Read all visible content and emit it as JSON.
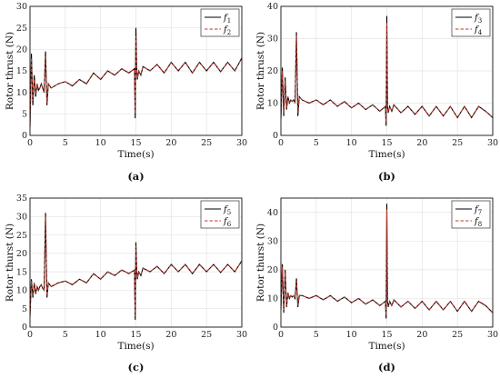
{
  "chart_data": [
    {
      "type": "line",
      "panel_label": "(a)",
      "xlabel": "Time(s)",
      "ylabel": "Rotor thrust  (N)",
      "xlim": [
        0,
        30
      ],
      "ylim": [
        0,
        30
      ],
      "xticks": [
        "0",
        "5",
        "10",
        "15",
        "20",
        "25",
        "30"
      ],
      "yticks": [
        "0",
        "5",
        "10",
        "15",
        "20",
        "25",
        "30"
      ],
      "grid": true,
      "legend_position": "top-right",
      "series": [
        {
          "name": "f1",
          "legend_base": "f",
          "legend_sub": "1",
          "color": "#000000",
          "style": "solid",
          "x": [
            0,
            0.2,
            0.4,
            0.6,
            0.8,
            1.0,
            1.2,
            1.4,
            1.6,
            1.8,
            2.0,
            2.2,
            2.4,
            2.6,
            3,
            3.5,
            4,
            5,
            6,
            7,
            8,
            9,
            10,
            11,
            12,
            13,
            14,
            14.8,
            14.9,
            15.0,
            15.1,
            15.2,
            15.4,
            15.7,
            16,
            17,
            18,
            19,
            20,
            21,
            22,
            23,
            24,
            25,
            26,
            27,
            28,
            29,
            30
          ],
          "y": [
            2,
            19,
            7,
            14,
            9,
            12,
            10.5,
            11,
            12,
            11,
            10,
            19.5,
            7,
            12,
            11,
            11.5,
            12,
            12.5,
            11.5,
            13,
            12,
            14.5,
            13,
            15,
            14,
            15.5,
            14.5,
            15.5,
            4,
            25,
            16,
            13,
            15,
            14,
            16,
            15,
            16.5,
            14.5,
            17,
            15,
            17,
            14.5,
            17,
            15,
            17,
            14.8,
            17,
            15,
            18
          ]
        },
        {
          "name": "f2",
          "legend_base": "f",
          "legend_sub": "2",
          "color": "#c0392b",
          "style": "dashed",
          "x": [
            0,
            0.2,
            0.4,
            0.6,
            0.8,
            1.0,
            1.2,
            1.4,
            1.6,
            1.8,
            2.0,
            2.2,
            2.4,
            2.6,
            3,
            3.5,
            4,
            5,
            6,
            7,
            8,
            9,
            10,
            11,
            12,
            13,
            14,
            14.8,
            14.9,
            15.0,
            15.1,
            15.2,
            15.4,
            15.7,
            16,
            17,
            18,
            19,
            20,
            21,
            22,
            23,
            24,
            25,
            26,
            27,
            28,
            29,
            30
          ],
          "y": [
            2,
            18,
            8,
            13,
            9.5,
            12,
            10.8,
            11,
            11.8,
            11.2,
            10.2,
            18.5,
            7.5,
            12,
            11,
            11.5,
            12,
            12.5,
            11.6,
            13,
            12.1,
            14.4,
            13.1,
            14.9,
            14.1,
            15.4,
            14.6,
            15.4,
            5,
            23,
            15.8,
            13.2,
            14.9,
            14.1,
            15.9,
            15.1,
            16.4,
            14.6,
            16.9,
            15.1,
            16.9,
            14.6,
            16.9,
            15.1,
            16.9,
            14.9,
            16.9,
            15.1,
            17.9
          ]
        }
      ]
    },
    {
      "type": "line",
      "panel_label": "(b)",
      "xlabel": "Time(s)",
      "ylabel": "Rotor thrust  (N)",
      "xlim": [
        0,
        30
      ],
      "ylim": [
        0,
        40
      ],
      "xticks": [
        "0",
        "5",
        "10",
        "15",
        "20",
        "25",
        "30"
      ],
      "yticks": [
        "0",
        "10",
        "20",
        "30",
        "40"
      ],
      "grid": true,
      "legend_position": "top-right",
      "series": [
        {
          "name": "f3",
          "legend_base": "f",
          "legend_sub": "3",
          "color": "#000000",
          "style": "solid",
          "x": [
            0,
            0.2,
            0.4,
            0.6,
            0.8,
            1.0,
            1.2,
            1.4,
            1.6,
            1.8,
            2.0,
            2.2,
            2.4,
            2.6,
            3,
            4,
            5,
            6,
            7,
            8,
            9,
            10,
            11,
            12,
            13,
            14,
            14.8,
            14.9,
            15.0,
            15.1,
            15.2,
            15.4,
            15.7,
            16,
            17,
            18,
            19,
            20,
            21,
            22,
            23,
            24,
            25,
            26,
            27,
            28,
            29,
            30
          ],
          "y": [
            5,
            21,
            6,
            18,
            8,
            12,
            10,
            11,
            10.5,
            11,
            10,
            32,
            6,
            12,
            11,
            10,
            11,
            9.5,
            11,
            9,
            10.5,
            8.5,
            10,
            8,
            9.5,
            7.5,
            9,
            3,
            37,
            9,
            7,
            9,
            7.5,
            9.5,
            7,
            9,
            6.5,
            9,
            6,
            9,
            6,
            9,
            5.5,
            9,
            5.5,
            9,
            7.5,
            5.5
          ]
        },
        {
          "name": "f4",
          "legend_base": "f",
          "legend_sub": "4",
          "color": "#c0392b",
          "style": "dashed",
          "x": [
            0,
            0.2,
            0.4,
            0.6,
            0.8,
            1.0,
            1.2,
            1.4,
            1.6,
            1.8,
            2.0,
            2.2,
            2.4,
            2.6,
            3,
            4,
            5,
            6,
            7,
            8,
            9,
            10,
            11,
            12,
            13,
            14,
            14.8,
            14.9,
            15.0,
            15.1,
            15.2,
            15.4,
            15.7,
            16,
            17,
            18,
            19,
            20,
            21,
            22,
            23,
            24,
            25,
            26,
            27,
            28,
            29,
            30
          ],
          "y": [
            5,
            20,
            7,
            17,
            8.5,
            12,
            10.2,
            11,
            10.6,
            11,
            10.1,
            31,
            7,
            12,
            11,
            10.1,
            10.9,
            9.6,
            10.9,
            9.1,
            10.4,
            8.6,
            9.9,
            8.1,
            9.4,
            7.6,
            8.9,
            4,
            35,
            9.1,
            7.2,
            8.9,
            7.6,
            9.4,
            7.1,
            8.9,
            6.6,
            8.9,
            6.1,
            8.9,
            6.1,
            8.9,
            5.6,
            8.9,
            5.6,
            8.9,
            7.4,
            5.6
          ]
        }
      ]
    },
    {
      "type": "line",
      "panel_label": "(c)",
      "xlabel": "Time(s)",
      "ylabel": "Rotor thurst  (N)",
      "xlim": [
        0,
        30
      ],
      "ylim": [
        0,
        35
      ],
      "xticks": [
        "0",
        "5",
        "10",
        "15",
        "20",
        "25",
        "30"
      ],
      "yticks": [
        "0",
        "5",
        "10",
        "15",
        "20",
        "25",
        "30",
        "35"
      ],
      "grid": true,
      "legend_position": "top-right",
      "series": [
        {
          "name": "f5",
          "legend_base": "f",
          "legend_sub": "5",
          "color": "#000000",
          "style": "solid",
          "x": [
            0,
            0.2,
            0.4,
            0.6,
            0.8,
            1.0,
            1.2,
            1.4,
            1.6,
            1.8,
            2.0,
            2.2,
            2.4,
            2.6,
            3,
            3.5,
            4,
            5,
            6,
            7,
            8,
            9,
            10,
            11,
            12,
            13,
            14,
            14.8,
            14.9,
            15.0,
            15.1,
            15.2,
            15.4,
            15.7,
            16,
            17,
            18,
            19,
            20,
            21,
            22,
            23,
            24,
            25,
            26,
            27,
            28,
            29,
            30
          ],
          "y": [
            3,
            13,
            8,
            12,
            9,
            11,
            10,
            11,
            11.5,
            10.5,
            10,
            31,
            8,
            12,
            11,
            11.5,
            12,
            12.5,
            11.5,
            13,
            12,
            14.5,
            13,
            15,
            14,
            15.5,
            14.5,
            15.5,
            2,
            23,
            16,
            13,
            15,
            14,
            16,
            15,
            16.5,
            14.5,
            17,
            15,
            17,
            14.5,
            17,
            15,
            17,
            14.8,
            17,
            15,
            18
          ]
        },
        {
          "name": "f6",
          "legend_base": "f",
          "legend_sub": "6",
          "color": "#c0392b",
          "style": "dashed",
          "x": [
            0,
            0.2,
            0.4,
            0.6,
            0.8,
            1.0,
            1.2,
            1.4,
            1.6,
            1.8,
            2.0,
            2.2,
            2.4,
            2.6,
            3,
            3.5,
            4,
            5,
            6,
            7,
            8,
            9,
            10,
            11,
            12,
            13,
            14,
            14.8,
            14.9,
            15.0,
            15.1,
            15.2,
            15.4,
            15.7,
            16,
            17,
            18,
            19,
            20,
            21,
            22,
            23,
            24,
            25,
            26,
            27,
            28,
            29,
            30
          ],
          "y": [
            3,
            12.5,
            8.5,
            11.8,
            9.3,
            11,
            10.2,
            11,
            11.3,
            10.6,
            10.1,
            30,
            8.5,
            12,
            11,
            11.5,
            12,
            12.5,
            11.6,
            13,
            12.1,
            14.4,
            13.1,
            14.9,
            14.1,
            15.4,
            14.6,
            15.4,
            3,
            22,
            15.8,
            13.2,
            14.9,
            14.1,
            15.9,
            15.1,
            16.4,
            14.6,
            16.9,
            15.1,
            16.9,
            14.6,
            16.9,
            15.1,
            16.9,
            14.9,
            16.9,
            15.1,
            17.9
          ]
        }
      ]
    },
    {
      "type": "line",
      "panel_label": "(d)",
      "xlabel": "Time(s)",
      "ylabel": "Rotor thurst  (N)",
      "xlim": [
        0,
        30
      ],
      "ylim": [
        0,
        45
      ],
      "xticks": [
        "0",
        "5",
        "10",
        "15",
        "20",
        "25",
        "30"
      ],
      "yticks": [
        "0",
        "10",
        "20",
        "30",
        "40"
      ],
      "grid": true,
      "legend_position": "top-right",
      "series": [
        {
          "name": "f7",
          "legend_base": "f",
          "legend_sub": "7",
          "color": "#000000",
          "style": "solid",
          "x": [
            0,
            0.2,
            0.4,
            0.6,
            0.8,
            1.0,
            1.2,
            1.4,
            1.6,
            1.8,
            2.0,
            2.2,
            2.4,
            2.6,
            3,
            4,
            5,
            6,
            7,
            8,
            9,
            10,
            11,
            12,
            13,
            14,
            14.8,
            14.9,
            15.0,
            15.1,
            15.2,
            15.4,
            15.7,
            16,
            17,
            18,
            19,
            20,
            21,
            22,
            23,
            24,
            25,
            26,
            27,
            28,
            29,
            30
          ],
          "y": [
            6,
            22,
            5,
            20,
            7,
            12,
            10,
            11,
            10.5,
            11,
            10,
            17,
            7,
            11,
            11,
            10,
            11,
            9.5,
            11,
            9,
            10.5,
            8.5,
            10,
            8,
            9.5,
            7.5,
            9,
            3,
            43,
            9,
            7,
            9,
            7.5,
            9.5,
            7,
            9,
            6.5,
            9,
            6,
            9,
            6,
            9,
            5.5,
            9,
            5.5,
            9,
            7.5,
            5
          ]
        },
        {
          "name": "f8",
          "legend_base": "f",
          "legend_sub": "8",
          "color": "#c0392b",
          "style": "dashed",
          "x": [
            0,
            0.2,
            0.4,
            0.6,
            0.8,
            1.0,
            1.2,
            1.4,
            1.6,
            1.8,
            2.0,
            2.2,
            2.4,
            2.6,
            3,
            4,
            5,
            6,
            7,
            8,
            9,
            10,
            11,
            12,
            13,
            14,
            14.8,
            14.9,
            15.0,
            15.1,
            15.2,
            15.4,
            15.7,
            16,
            17,
            18,
            19,
            20,
            21,
            22,
            23,
            24,
            25,
            26,
            27,
            28,
            29,
            30
          ],
          "y": [
            6,
            21,
            6,
            19,
            7.5,
            12,
            10.2,
            11,
            10.6,
            11,
            10.1,
            16,
            7.5,
            11,
            11,
            10.1,
            10.9,
            9.6,
            10.9,
            9.1,
            10.4,
            8.6,
            9.9,
            8.1,
            9.4,
            7.6,
            8.9,
            4,
            41,
            9.1,
            7.2,
            8.9,
            7.6,
            9.4,
            7.1,
            8.9,
            6.6,
            8.9,
            6.1,
            8.9,
            6.1,
            8.9,
            5.6,
            8.9,
            5.6,
            8.9,
            7.4,
            5.1
          ]
        }
      ]
    }
  ]
}
